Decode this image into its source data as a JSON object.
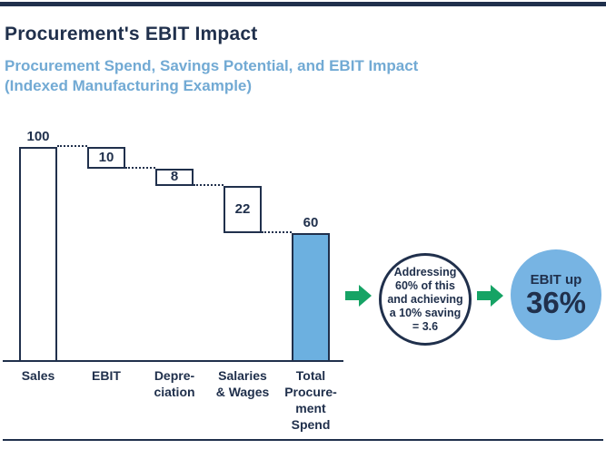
{
  "header": {
    "title": "Procurement's EBIT Impact",
    "subtitle_line1": "Procurement Spend, Savings Potential, and EBIT Impact",
    "subtitle_line2": "(Indexed Manufacturing Example)"
  },
  "colors": {
    "navy": "#20304c",
    "light_blue_text": "#72aad4",
    "bar_blue": "#6cb0e0",
    "circle_blue": "#77b4e3",
    "green": "#16a365"
  },
  "chart_data": {
    "type": "waterfall",
    "title": "Procurement's EBIT Impact",
    "subtitle": "Procurement Spend, Savings Potential, and EBIT Impact (Indexed Manufacturing Example)",
    "categories": [
      "Sales",
      "EBIT",
      "Depreciation",
      "Salaries & Wages",
      "Total Procurement Spend"
    ],
    "category_label_lines": [
      [
        "Sales"
      ],
      [
        "EBIT"
      ],
      [
        "Depre-",
        "ciation"
      ],
      [
        "Salaries",
        "& Wages"
      ],
      [
        "Total",
        "Procure-",
        "ment",
        "Spend"
      ]
    ],
    "values": [
      100,
      10,
      8,
      22,
      60
    ],
    "value_labels": [
      "100",
      "10",
      "8",
      "22",
      "60"
    ],
    "label_positions": [
      "above",
      "inside",
      "inside",
      "inside",
      "above"
    ],
    "bar_styles": [
      "outline",
      "outline",
      "outline",
      "outline",
      "filled"
    ],
    "ylim": [
      0,
      100
    ],
    "grid": false,
    "legend": false,
    "annotations": [
      "Addressing 60% of this and achieving a 10% saving = 3.6",
      "EBIT up 36%"
    ]
  },
  "annotations": {
    "bubble1_lines": [
      "Addressing",
      "60% of this",
      "and achieving",
      "a 10% saving",
      "= 3.6"
    ],
    "bubble2_line1": "EBIT up",
    "bubble2_line2": "36%"
  },
  "icons": {
    "arrow1": "green-right-arrow",
    "arrow2": "green-right-arrow"
  }
}
